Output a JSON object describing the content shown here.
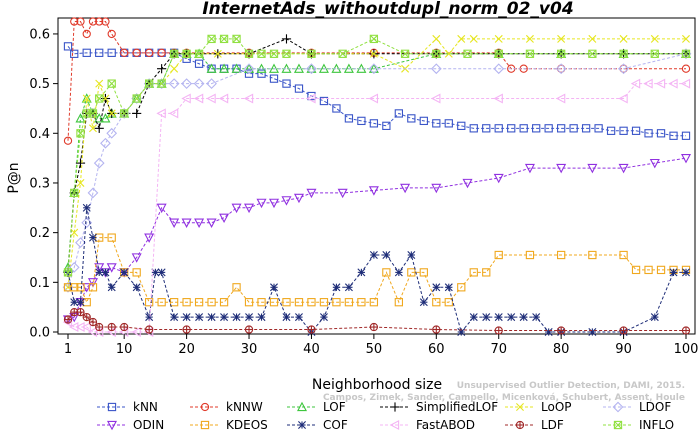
{
  "chart_data": {
    "type": "line",
    "title": "InternetAds_withoutdupl_norm_02_v04",
    "xlabel": "Neighborhood size",
    "ylabel": "P@n",
    "xlim": [
      1,
      100
    ],
    "ylim": [
      0,
      0.62
    ],
    "x_ticks": [
      1,
      10,
      20,
      30,
      40,
      50,
      60,
      70,
      80,
      90,
      100
    ],
    "x_tick_labels": [
      "1",
      "10",
      "20",
      "30",
      "40",
      "50",
      "60",
      "70",
      "80",
      "90",
      "100"
    ],
    "y_ticks": [
      0.0,
      0.1,
      0.2,
      0.3,
      0.4,
      0.5,
      0.6
    ],
    "y_tick_labels": [
      "0.0",
      "0.1",
      "0.2",
      "0.3",
      "0.4",
      "0.5",
      "0.6"
    ],
    "grid": false,
    "legend_position": "bottom",
    "watermark": [
      "Campos, Zimek, Sander, Campello, Micenková, Schubert, Assent, Houle",
      "Unsupervised Outlier Detection, DAMI, 2015."
    ],
    "series": [
      {
        "name": "kNN",
        "color": "#3a55c8",
        "marker": "square",
        "x": [
          1,
          2,
          4,
          6,
          8,
          10,
          12,
          14,
          16,
          18,
          20,
          22,
          24,
          26,
          28,
          30,
          32,
          34,
          36,
          38,
          40,
          42,
          44,
          46,
          48,
          50,
          52,
          54,
          56,
          58,
          60,
          62,
          64,
          66,
          68,
          70,
          72,
          74,
          76,
          78,
          80,
          82,
          84,
          86,
          88,
          90,
          92,
          94,
          96,
          98,
          100
        ],
        "y": [
          0.575,
          0.56,
          0.562,
          0.562,
          0.562,
          0.562,
          0.562,
          0.562,
          0.562,
          0.562,
          0.55,
          0.54,
          0.53,
          0.53,
          0.53,
          0.52,
          0.52,
          0.51,
          0.5,
          0.49,
          0.475,
          0.465,
          0.45,
          0.43,
          0.425,
          0.42,
          0.415,
          0.44,
          0.43,
          0.425,
          0.42,
          0.42,
          0.415,
          0.41,
          0.41,
          0.41,
          0.41,
          0.41,
          0.41,
          0.41,
          0.41,
          0.41,
          0.41,
          0.41,
          0.405,
          0.405,
          0.405,
          0.4,
          0.4,
          0.395,
          0.395
        ]
      },
      {
        "name": "kNNW",
        "color": "#e03a2a",
        "marker": "circle",
        "x": [
          1,
          2,
          3,
          4,
          5,
          6,
          7,
          8,
          10,
          12,
          14,
          16,
          18,
          20,
          30,
          40,
          50,
          60,
          70,
          72,
          74,
          80,
          90,
          100
        ],
        "y": [
          0.385,
          0.625,
          0.625,
          0.6,
          0.625,
          0.625,
          0.625,
          0.6,
          0.562,
          0.562,
          0.562,
          0.562,
          0.562,
          0.562,
          0.562,
          0.562,
          0.562,
          0.562,
          0.562,
          0.53,
          0.53,
          0.53,
          0.53,
          0.53
        ]
      },
      {
        "name": "LOF",
        "color": "#3ec63e",
        "marker": "triangle",
        "x": [
          1,
          2,
          3,
          4,
          5,
          6,
          7,
          8,
          10,
          12,
          14,
          16,
          18,
          20,
          22,
          24,
          26,
          28,
          30,
          32,
          34,
          36,
          38,
          40,
          42,
          44,
          46,
          48,
          50,
          60,
          70,
          80,
          90,
          100
        ],
        "y": [
          0.13,
          0.28,
          0.43,
          0.47,
          0.44,
          0.43,
          0.43,
          0.44,
          0.44,
          0.47,
          0.5,
          0.5,
          0.56,
          0.56,
          0.56,
          0.53,
          0.53,
          0.53,
          0.53,
          0.53,
          0.53,
          0.53,
          0.53,
          0.53,
          0.53,
          0.53,
          0.53,
          0.53,
          0.53,
          0.56,
          0.56,
          0.56,
          0.56,
          0.56
        ]
      },
      {
        "name": "SimplifiedLOF",
        "color": "#000000",
        "marker": "plus",
        "x": [
          1,
          2,
          3,
          4,
          5,
          6,
          7,
          8,
          10,
          12,
          14,
          16,
          18,
          20,
          25,
          30,
          36,
          40,
          50,
          60,
          70,
          80,
          90,
          100
        ],
        "y": [
          0.12,
          0.28,
          0.34,
          0.44,
          0.44,
          0.41,
          0.47,
          0.44,
          0.44,
          0.44,
          0.5,
          0.53,
          0.56,
          0.56,
          0.56,
          0.56,
          0.59,
          0.56,
          0.56,
          0.56,
          0.56,
          0.56,
          0.56,
          0.56
        ]
      },
      {
        "name": "LoOP",
        "color": "#e6e620",
        "marker": "cross",
        "x": [
          1,
          2,
          3,
          4,
          5,
          6,
          7,
          8,
          10,
          12,
          14,
          16,
          18,
          20,
          25,
          30,
          40,
          50,
          55,
          60,
          62,
          64,
          66,
          70,
          75,
          80,
          85,
          90,
          95,
          100
        ],
        "y": [
          0.09,
          0.2,
          0.3,
          0.47,
          0.41,
          0.5,
          0.47,
          0.44,
          0.44,
          0.47,
          0.5,
          0.5,
          0.53,
          0.56,
          0.56,
          0.56,
          0.56,
          0.56,
          0.53,
          0.59,
          0.56,
          0.59,
          0.59,
          0.59,
          0.59,
          0.59,
          0.59,
          0.59,
          0.59,
          0.59
        ]
      },
      {
        "name": "LDOF",
        "color": "#b4b4f0",
        "marker": "diamond",
        "x": [
          1,
          2,
          3,
          4,
          5,
          6,
          7,
          8,
          10,
          12,
          14,
          16,
          18,
          20,
          22,
          24,
          30,
          40,
          50,
          60,
          70,
          80,
          90,
          100
        ],
        "y": [
          0.09,
          0.13,
          0.18,
          0.22,
          0.28,
          0.34,
          0.38,
          0.4,
          0.44,
          0.47,
          0.5,
          0.5,
          0.5,
          0.5,
          0.5,
          0.5,
          0.53,
          0.53,
          0.53,
          0.53,
          0.53,
          0.53,
          0.53,
          0.56
        ]
      },
      {
        "name": "ODIN",
        "color": "#9030e0",
        "marker": "triangle-down",
        "x": [
          1,
          2,
          3,
          4,
          5,
          6,
          7,
          8,
          10,
          12,
          14,
          16,
          18,
          20,
          22,
          24,
          26,
          28,
          30,
          32,
          34,
          36,
          38,
          40,
          45,
          50,
          55,
          60,
          65,
          70,
          75,
          80,
          85,
          90,
          95,
          100
        ],
        "y": [
          0.025,
          0.03,
          0.06,
          0.09,
          0.1,
          0.13,
          0.12,
          0.13,
          0.12,
          0.15,
          0.19,
          0.25,
          0.22,
          0.22,
          0.22,
          0.22,
          0.23,
          0.25,
          0.25,
          0.26,
          0.26,
          0.265,
          0.27,
          0.28,
          0.28,
          0.285,
          0.29,
          0.29,
          0.3,
          0.31,
          0.33,
          0.33,
          0.33,
          0.33,
          0.34,
          0.35
        ]
      },
      {
        "name": "KDEOS",
        "color": "#f0a81e",
        "marker": "square",
        "x": [
          1,
          2,
          3,
          4,
          5,
          6,
          8,
          10,
          12,
          14,
          16,
          18,
          20,
          22,
          24,
          26,
          28,
          30,
          32,
          34,
          36,
          38,
          40,
          42,
          44,
          46,
          48,
          50,
          52,
          54,
          56,
          58,
          60,
          62,
          64,
          66,
          68,
          70,
          75,
          80,
          85,
          90,
          92,
          94,
          96,
          98,
          100
        ],
        "y": [
          0.09,
          0.09,
          0.09,
          0.06,
          0.09,
          0.19,
          0.19,
          0.12,
          0.12,
          0.06,
          0.06,
          0.06,
          0.06,
          0.06,
          0.06,
          0.06,
          0.09,
          0.06,
          0.06,
          0.06,
          0.06,
          0.06,
          0.06,
          0.06,
          0.06,
          0.06,
          0.06,
          0.06,
          0.12,
          0.06,
          0.12,
          0.12,
          0.06,
          0.06,
          0.09,
          0.12,
          0.12,
          0.155,
          0.155,
          0.155,
          0.155,
          0.155,
          0.125,
          0.125,
          0.125,
          0.125,
          0.125
        ]
      },
      {
        "name": "COF",
        "color": "#1e2d78",
        "marker": "star",
        "x": [
          1,
          2,
          3,
          4,
          5,
          6,
          7,
          8,
          10,
          12,
          14,
          15,
          16,
          18,
          20,
          22,
          24,
          26,
          28,
          30,
          32,
          34,
          36,
          38,
          40,
          42,
          44,
          46,
          48,
          50,
          52,
          54,
          56,
          58,
          60,
          62,
          64,
          66,
          68,
          70,
          72,
          74,
          76,
          78,
          80,
          85,
          90,
          95,
          98,
          100
        ],
        "y": [
          0.12,
          0.06,
          0.06,
          0.25,
          0.19,
          0.12,
          0.12,
          0.09,
          0.12,
          0.09,
          0.03,
          0.12,
          0.12,
          0.03,
          0.03,
          0.03,
          0.03,
          0.03,
          0.03,
          0.03,
          0.03,
          0.09,
          0.03,
          0.03,
          0.0,
          0.03,
          0.09,
          0.09,
          0.12,
          0.155,
          0.155,
          0.12,
          0.155,
          0.06,
          0.09,
          0.09,
          0.0,
          0.03,
          0.03,
          0.03,
          0.03,
          0.03,
          0.03,
          0.0,
          0.0,
          0.0,
          0.0,
          0.03,
          0.12,
          0.12
        ]
      },
      {
        "name": "FastABOD",
        "color": "#f4b4f4",
        "marker": "triangle-left",
        "x": [
          1,
          2,
          3,
          4,
          5,
          6,
          8,
          10,
          12,
          14,
          16,
          18,
          20,
          22,
          24,
          26,
          30,
          40,
          50,
          60,
          70,
          80,
          90,
          92,
          94,
          96,
          98,
          100
        ],
        "y": [
          0.02,
          0.01,
          0.01,
          0.01,
          0.0,
          0.0,
          0.0,
          0.0,
          0.0,
          0.0,
          0.44,
          0.44,
          0.47,
          0.47,
          0.47,
          0.47,
          0.47,
          0.47,
          0.47,
          0.47,
          0.47,
          0.47,
          0.47,
          0.5,
          0.5,
          0.5,
          0.5,
          0.5
        ]
      },
      {
        "name": "LDF",
        "color": "#a02828",
        "marker": "circle-plus",
        "x": [
          1,
          2,
          3,
          4,
          5,
          6,
          8,
          10,
          14,
          20,
          30,
          40,
          50,
          60,
          70,
          80,
          90,
          100
        ],
        "y": [
          0.025,
          0.04,
          0.04,
          0.03,
          0.02,
          0.01,
          0.01,
          0.01,
          0.005,
          0.005,
          0.005,
          0.005,
          0.01,
          0.005,
          0.003,
          0.003,
          0.003,
          0.003
        ]
      },
      {
        "name": "INFLO",
        "color": "#90e040",
        "marker": "box-x",
        "x": [
          1,
          2,
          3,
          4,
          5,
          6,
          8,
          10,
          12,
          14,
          16,
          18,
          20,
          22,
          24,
          26,
          28,
          30,
          32,
          34,
          36,
          40,
          45,
          50,
          55,
          60,
          65,
          70,
          75,
          80,
          85,
          90,
          95,
          100
        ],
        "y": [
          0.12,
          0.28,
          0.4,
          0.44,
          0.44,
          0.47,
          0.5,
          0.44,
          0.47,
          0.5,
          0.5,
          0.56,
          0.56,
          0.56,
          0.59,
          0.59,
          0.59,
          0.56,
          0.56,
          0.56,
          0.56,
          0.56,
          0.56,
          0.59,
          0.56,
          0.56,
          0.56,
          0.56,
          0.56,
          0.56,
          0.56,
          0.56,
          0.56,
          0.56
        ]
      }
    ]
  }
}
